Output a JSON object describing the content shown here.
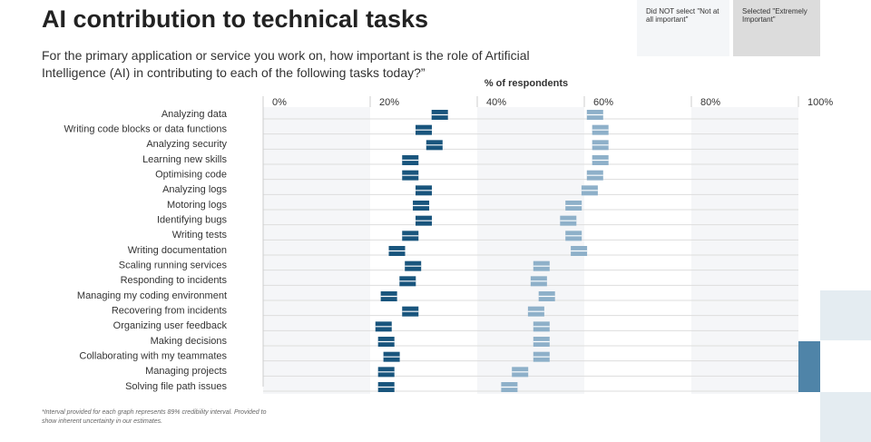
{
  "chart_data": {
    "type": "interval-dot",
    "title": "AI contribution to technical tasks",
    "subtitle": "For the primary application or service you work on, how important is the role of Artificial Intelligence (AI) in contributing to each of the following tasks today?”",
    "x_label": "% of respondents",
    "footnote": "*Interval provided for each graph represents 89% credibility interval. Provided to show inherent uncertainty in our estimates.",
    "categories": [
      "Analyzing data",
      "Writing code blocks or data functions",
      "Analyzing security",
      "Learning new skills",
      "Optimising code",
      "Analyzing logs",
      "Motoring logs",
      "Identifying bugs",
      "Writing tests",
      "Writing documentation",
      "Scaling running services",
      "Responding to incidents",
      "Managing my coding environment",
      "Recovering from incidents",
      "Organizing user feedback",
      "Making decisions",
      "Collaborating with my teammates",
      "Managing projects",
      "Solving file path issues"
    ],
    "series": [
      {
        "name": "Did NOT select \"Not at all important\"",
        "color": "#8eb0c9",
        "values": [
          62,
          63,
          63,
          63,
          62,
          61,
          58,
          57,
          58,
          59,
          52,
          51.5,
          53,
          51,
          52,
          52,
          52,
          48,
          46
        ]
      },
      {
        "name": "Selected \"Extremely Important\"",
        "color": "#19557d",
        "values": [
          33,
          30,
          32,
          27.5,
          27.5,
          30,
          29.5,
          30,
          27.5,
          25,
          28,
          27,
          23.5,
          27.5,
          22.5,
          23,
          24,
          23,
          23
        ]
      }
    ],
    "xlim": [
      0,
      100
    ],
    "xticks": [
      {
        "value": 0,
        "label": "0%"
      },
      {
        "value": 20,
        "label": "20%"
      },
      {
        "value": 40,
        "label": "40%"
      },
      {
        "value": 60,
        "label": "60%"
      },
      {
        "value": 80,
        "label": "80%"
      },
      {
        "value": 100,
        "label": "100%"
      }
    ]
  }
}
